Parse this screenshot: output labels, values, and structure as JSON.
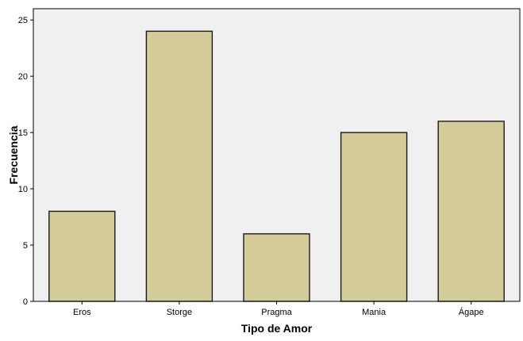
{
  "chart_data": {
    "type": "bar",
    "title": "",
    "xlabel": "Tipo de Amor",
    "ylabel": "Frecuencia",
    "categories": [
      "Eros",
      "Storge",
      "Pragma",
      "Mania",
      "Ágape"
    ],
    "values": [
      8,
      24,
      6,
      15,
      16
    ],
    "ylim": [
      0,
      26
    ],
    "yticks": [
      0,
      5,
      10,
      15,
      20,
      25
    ],
    "grid": false,
    "legend": "none",
    "colors": {
      "plot_background": "#f0f0f0",
      "bar_fill": "#d4cc98",
      "bar_stroke": "#1a1a1a",
      "axis": "#000000"
    }
  }
}
